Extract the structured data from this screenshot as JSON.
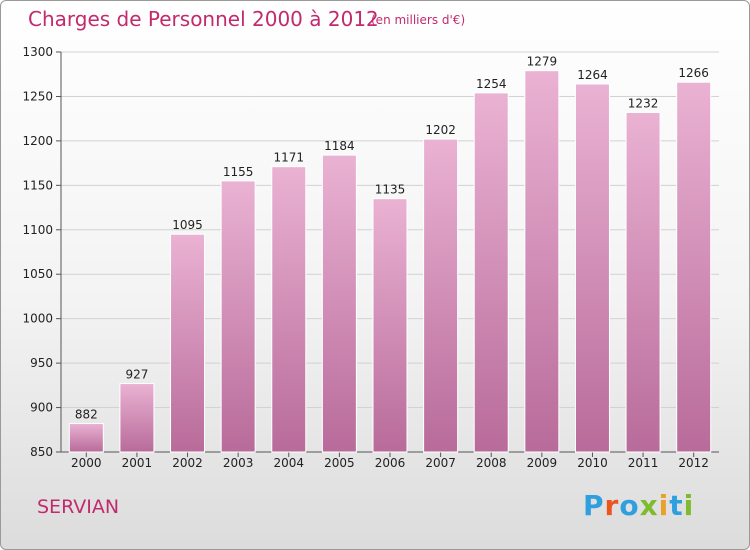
{
  "header": {
    "title": "Charges de Personnel 2000 à 2012",
    "unit": "(en milliers d'€)"
  },
  "footer": {
    "commune": "SERVIAN",
    "brand": "Proxiti"
  },
  "colors": {
    "accent": "#c22a6e",
    "bar_light": "#eab2d3",
    "bar_dark": "#b86b9a",
    "logo_letters": [
      "#2f9fde",
      "#e9571f",
      "#2f9fde",
      "#7dbb2f",
      "#e9a227",
      "#2f9fde",
      "#7dbb2f"
    ]
  },
  "chart_data": {
    "type": "bar",
    "title": "Charges de Personnel 2000 à 2012",
    "subtitle": "(en milliers d'€)",
    "categories": [
      "2000",
      "2001",
      "2002",
      "2003",
      "2004",
      "2005",
      "2006",
      "2007",
      "2008",
      "2009",
      "2010",
      "2011",
      "2012"
    ],
    "values": [
      882,
      927,
      1095,
      1155,
      1171,
      1184,
      1135,
      1202,
      1254,
      1279,
      1264,
      1232,
      1266
    ],
    "ylim": [
      850,
      1300
    ],
    "yticks": [
      850,
      900,
      950,
      1000,
      1050,
      1100,
      1150,
      1200,
      1250,
      1300
    ],
    "xlabel": "",
    "ylabel": "",
    "grid": true,
    "data_labels": true
  }
}
